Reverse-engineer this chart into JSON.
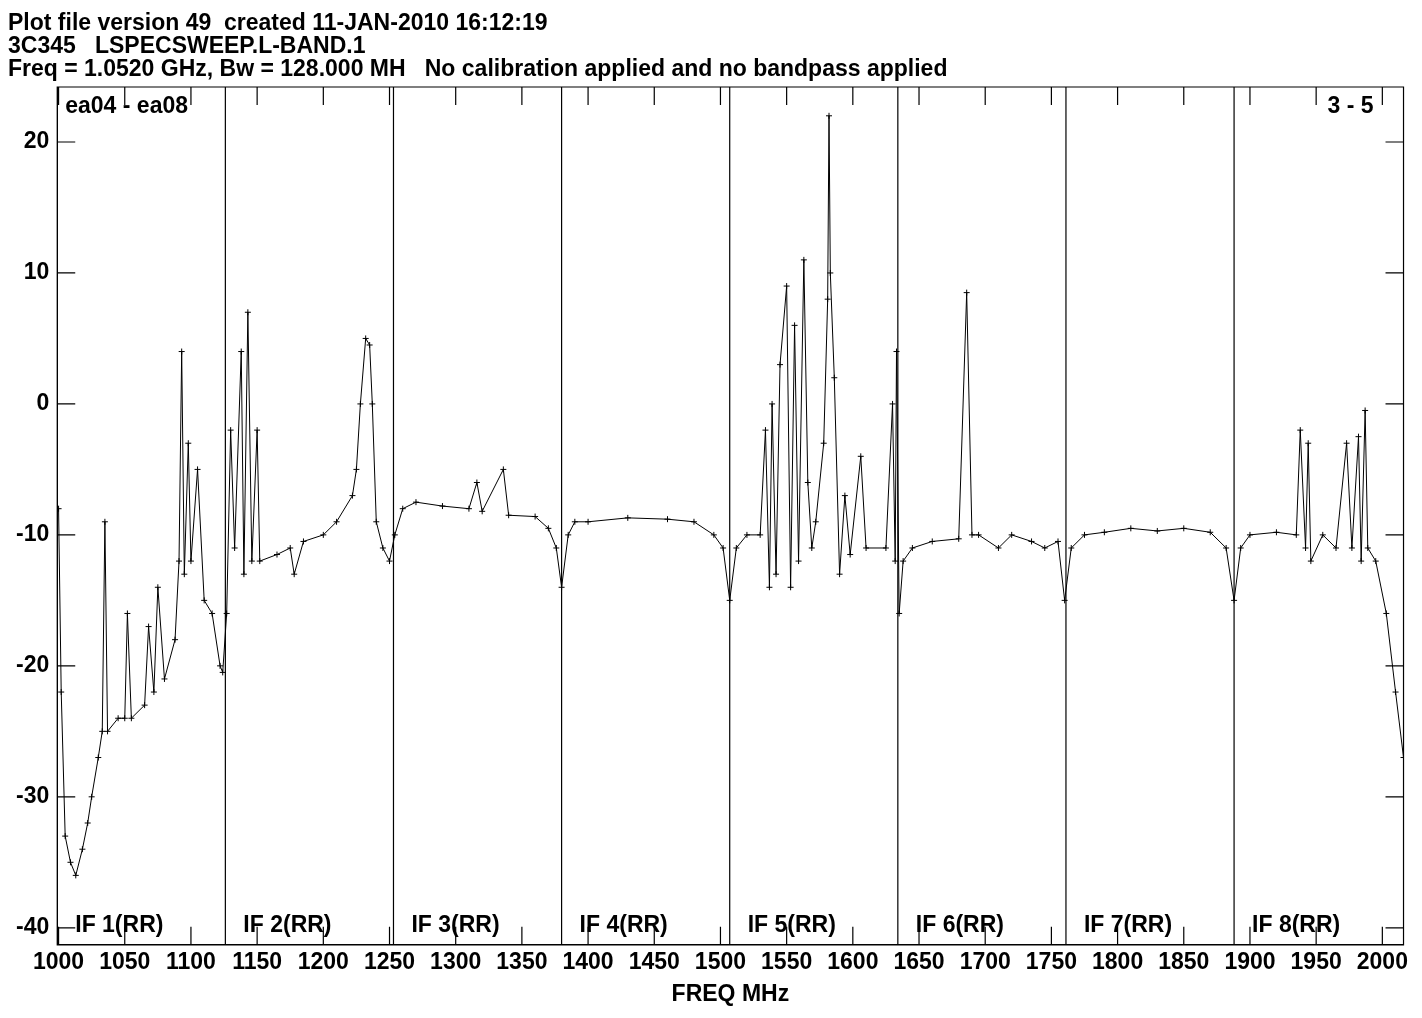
{
  "chart_data": {
    "type": "line",
    "title": "Plot file version 49  created 11-JAN-2010 16:12:19",
    "subtitle": "3C345   LSPECSWEEP.L-BAND.1\nFreq = 1.0520 GHz, Bw = 128.000 MH   No calibration applied and no bandpass applied",
    "xlabel": "FREQ MHz",
    "x": [
      1000,
      1002,
      1005,
      1009,
      1013,
      1018,
      1022,
      1025,
      1030,
      1033,
      1035,
      1037,
      1045,
      1050,
      1052,
      1055,
      1065,
      1068,
      1072,
      1075,
      1080,
      1088,
      1091,
      1093,
      1095,
      1098,
      1100,
      1105,
      1110,
      1116,
      1122,
      1124,
      1127,
      1130,
      1133,
      1138,
      1140,
      1143,
      1146,
      1150,
      1152,
      1165,
      1175,
      1178,
      1185,
      1200,
      1210,
      1222,
      1225,
      1228,
      1232,
      1235,
      1237,
      1240,
      1245,
      1250,
      1254,
      1260,
      1270,
      1290,
      1310,
      1316,
      1320,
      1336,
      1340,
      1360,
      1370,
      1376,
      1380,
      1385,
      1390,
      1400,
      1430,
      1460,
      1480,
      1495,
      1502,
      1507,
      1512,
      1520,
      1530,
      1534,
      1537,
      1539,
      1542,
      1545,
      1550,
      1553,
      1556,
      1559,
      1563,
      1566,
      1569,
      1572,
      1578,
      1581,
      1582,
      1583,
      1586,
      1590,
      1594,
      1598,
      1606,
      1610,
      1625,
      1630,
      1632,
      1633,
      1635,
      1638,
      1645,
      1660,
      1680,
      1686,
      1690,
      1695,
      1710,
      1720,
      1735,
      1745,
      1755,
      1760,
      1765,
      1775,
      1790,
      1810,
      1830,
      1850,
      1870,
      1882,
      1888,
      1893,
      1900,
      1920,
      1935,
      1938,
      1942,
      1944,
      1946,
      1955,
      1965,
      1973,
      1977,
      1982,
      1984,
      1987,
      1989,
      1995,
      2003,
      2010,
      2016
    ],
    "series": [
      {
        "color": "#000000",
        "values": [
          -8,
          -22,
          -33,
          -35,
          -36,
          -34,
          -32,
          -30,
          -27,
          -25,
          -9,
          -25,
          -24,
          -24,
          -16,
          -24,
          -23,
          -17,
          -22,
          -14,
          -21,
          -18,
          -12,
          4,
          -13,
          -3,
          -12,
          -5,
          -15,
          -16,
          -20,
          -20.5,
          -16,
          -2,
          -11,
          4,
          -13,
          7,
          -12,
          -2,
          -12,
          -11.5,
          -11,
          -13,
          -10.5,
          -10,
          -9,
          -7,
          -5,
          0,
          5,
          4.5,
          0,
          -9,
          -11,
          -12,
          -10,
          -8,
          -7.5,
          -7.8,
          -8,
          -6,
          -8.2,
          -5,
          -8.5,
          -8.6,
          -9.5,
          -11,
          -14,
          -10,
          -9,
          -9,
          -8.7,
          -8.8,
          -9,
          -10,
          -11,
          -15,
          -11,
          -10,
          -10,
          -2,
          -14,
          0,
          -13,
          3,
          9,
          -14,
          6,
          -12,
          11,
          -6,
          -11,
          -9,
          -3,
          8,
          22,
          10,
          2,
          -13,
          -7,
          -11.5,
          -4,
          -11,
          -11,
          0,
          -12,
          4,
          -16,
          -12,
          -11,
          -10.5,
          -10.3,
          8.5,
          -10,
          -10,
          -11,
          -10,
          -10.5,
          -11,
          -10.5,
          -15,
          -11,
          -10,
          -9.8,
          -9.5,
          -9.7,
          -9.5,
          -9.8,
          -11,
          -15,
          -11,
          -10,
          -9.8,
          -10,
          -2,
          -11,
          -3,
          -12,
          -10,
          -11,
          -3,
          -11,
          -2.5,
          -12,
          -0.5,
          -11,
          -12,
          -16,
          -22,
          -27
        ]
      }
    ],
    "xlim": [
      999,
      2016
    ],
    "ylim": [
      -41.3,
      24.2
    ],
    "xticks": [
      1000,
      1050,
      1100,
      1150,
      1200,
      1250,
      1300,
      1350,
      1400,
      1450,
      1500,
      1550,
      1600,
      1650,
      1700,
      1750,
      1800,
      1850,
      1900,
      1950,
      2000
    ],
    "yticks": [
      -40,
      -30,
      -20,
      -10,
      0,
      10,
      20
    ],
    "grid": false,
    "legend": false,
    "marker": "cross",
    "line_style": "solid",
    "ref_lines": [
      {
        "axis": "x",
        "value": 1126,
        "color": "#000000"
      },
      {
        "axis": "x",
        "value": 1253,
        "color": "#000000"
      },
      {
        "axis": "x",
        "value": 1380,
        "color": "#000000"
      },
      {
        "axis": "x",
        "value": 1507,
        "color": "#000000"
      },
      {
        "axis": "x",
        "value": 1634,
        "color": "#000000"
      },
      {
        "axis": "x",
        "value": 1761,
        "color": "#000000"
      },
      {
        "axis": "x",
        "value": 1888,
        "color": "#000000"
      }
    ],
    "annotations": [
      "ea04 - ea08",
      "3 - 5",
      "IF 1(RR)",
      "IF 2(RR)",
      "IF 3(RR)",
      "IF 4(RR)",
      "IF 5(RR)",
      "IF 6(RR)",
      "IF 7(RR)",
      "IF 8(RR)"
    ]
  }
}
